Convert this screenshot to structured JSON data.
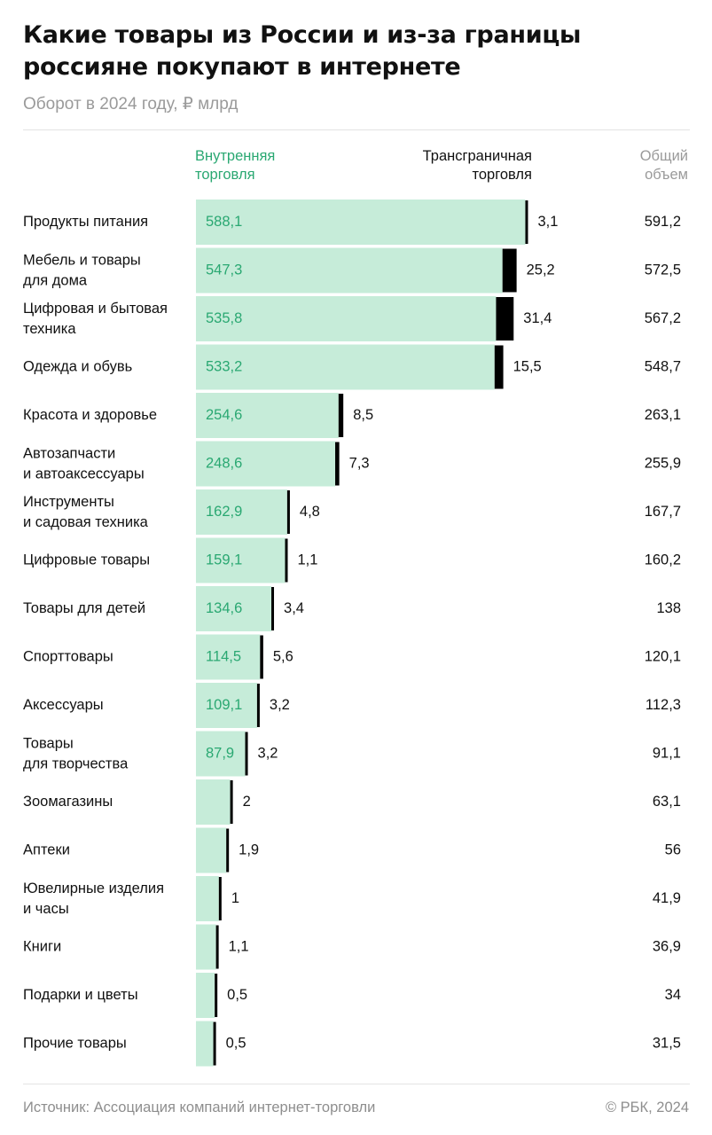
{
  "title": "Какие товары из России и из-за границы россияне покупают в интернете",
  "subtitle": "Оборот в 2024 году, ₽ млрд",
  "columns": {
    "domestic": [
      "Внутренняя",
      "торговля"
    ],
    "cross_border": [
      "Трансграничная",
      "торговля"
    ],
    "total": [
      "Общий",
      "объем"
    ]
  },
  "source": "Источник: Ассоциация компаний интернет-торговли",
  "copyright": "© РБК, 2024",
  "colors": {
    "domestic_bar": "#c6ecd9",
    "domestic_text": "#2aa872",
    "cross_border_bar": "#000000"
  },
  "chart_data": {
    "type": "bar",
    "orientation": "horizontal",
    "stacked": true,
    "categories": [
      [
        "Продукты питания"
      ],
      [
        "Мебель и товары",
        "для дома"
      ],
      [
        "Цифровая и бытовая",
        "техника"
      ],
      [
        "Одежда и обувь"
      ],
      [
        "Красота и здоровье"
      ],
      [
        "Автозапчасти",
        "и автоаксессуары"
      ],
      [
        "Инструменты",
        "и садовая техника"
      ],
      [
        "Цифровые товары"
      ],
      [
        "Товары для детей"
      ],
      [
        "Спорттовары"
      ],
      [
        "Аксессуары"
      ],
      [
        "Товары",
        "для творчества"
      ],
      [
        "Зоомагазины"
      ],
      [
        "Аптеки"
      ],
      [
        "Ювелирные изделия",
        "и часы"
      ],
      [
        "Книги"
      ],
      [
        "Подарки и цветы"
      ],
      [
        "Прочие товары"
      ]
    ],
    "series": [
      {
        "name": "Внутренняя торговля",
        "values": [
          588.1,
          547.3,
          535.8,
          533.2,
          254.6,
          248.6,
          162.9,
          159.1,
          134.6,
          114.5,
          109.1,
          87.9,
          61.1,
          54.1,
          40.9,
          35.8,
          33.5,
          31.0
        ],
        "labels": [
          "588,1",
          "547,3",
          "535,8",
          "533,2",
          "254,6",
          "248,6",
          "162,9",
          "159,1",
          "134,6",
          "114,5",
          "109,1",
          "87,9",
          "",
          "",
          "",
          "",
          "",
          ""
        ]
      },
      {
        "name": "Трансграничная торговля",
        "values": [
          3.1,
          25.2,
          31.4,
          15.5,
          8.5,
          7.3,
          4.8,
          1.1,
          3.4,
          5.6,
          3.2,
          3.2,
          2,
          1.9,
          1,
          1.1,
          0.5,
          0.5
        ],
        "labels": [
          "3,1",
          "25,2",
          "31,4",
          "15,5",
          "8,5",
          "7,3",
          "4,8",
          "1,1",
          "3,4",
          "5,6",
          "3,2",
          "3,2",
          "2",
          "1,9",
          "1",
          "1,1",
          "0,5",
          "0,5"
        ]
      }
    ],
    "totals": [
      "591,2",
      "572,5",
      "567,2",
      "548,7",
      "263,1",
      "255,9",
      "167,7",
      "160,2",
      "138",
      "120,1",
      "112,3",
      "91,1",
      "63,1",
      "56",
      "41,9",
      "36,9",
      "34",
      "31,5"
    ],
    "xlim": [
      0,
      600
    ]
  }
}
